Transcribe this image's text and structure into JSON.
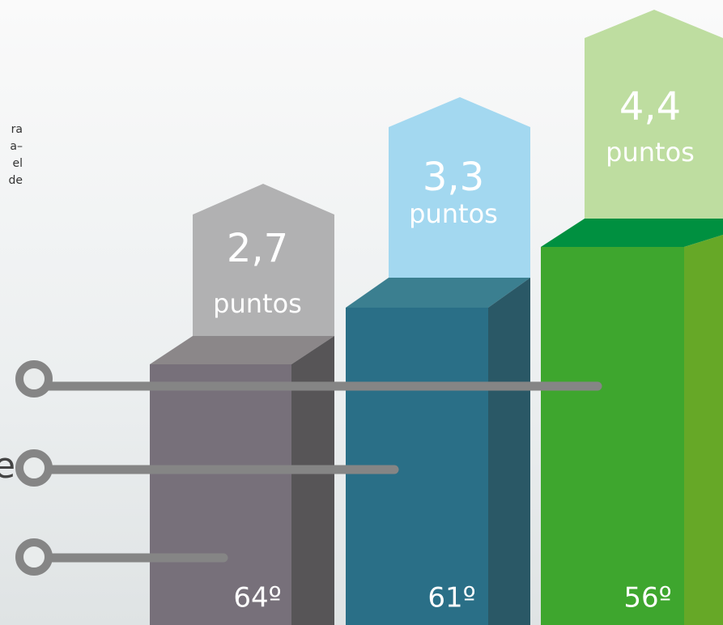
{
  "intro_fragments": [
    "ra",
    "a–",
    "el",
    "de"
  ],
  "side_fragment": "e",
  "bars": [
    {
      "score": "2,7",
      "unit": "puntos",
      "rank": "64º"
    },
    {
      "score": "3,3",
      "unit": "puntos",
      "rank": "61º"
    },
    {
      "score": "4,4",
      "unit": "puntos",
      "rank": "56º"
    }
  ]
}
